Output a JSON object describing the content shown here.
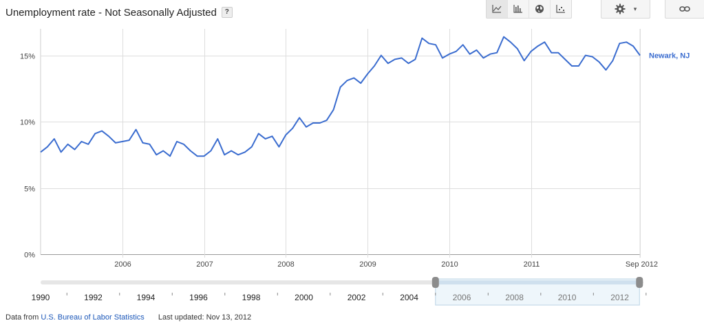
{
  "header": {
    "title": "Unemployment rate - Not Seasonally Adjusted",
    "help_label": "?"
  },
  "toolbar": {
    "buttons": [
      {
        "name": "line-chart-icon",
        "active": true
      },
      {
        "name": "bar-chart-icon",
        "active": false
      },
      {
        "name": "map-globe-icon",
        "active": false
      },
      {
        "name": "scatter-plot-icon",
        "active": false
      }
    ],
    "settings_icon": "gear-icon",
    "settings_caret": "▾",
    "link_icon": "link-icon"
  },
  "chart_data": {
    "type": "line",
    "title": "",
    "xlabel": "",
    "ylabel": "",
    "ylim": [
      0,
      17
    ],
    "y_ticks": [
      "0%",
      "5%",
      "10%",
      "15%"
    ],
    "y_tick_values": [
      0,
      5,
      10,
      15
    ],
    "x_range": [
      "2005-01",
      "2012-09"
    ],
    "x_ticks": [
      "2006",
      "2007",
      "2008",
      "2009",
      "2010",
      "2011",
      "Sep 2012"
    ],
    "grid": true,
    "series": [
      {
        "name": "Newark, NJ",
        "color": "#3a6ccf",
        "values": [
          7.7,
          8.1,
          8.7,
          7.7,
          8.3,
          7.9,
          8.5,
          8.3,
          9.1,
          9.3,
          8.9,
          8.4,
          8.5,
          8.6,
          9.4,
          8.4,
          8.3,
          7.5,
          7.8,
          7.4,
          8.5,
          8.3,
          7.8,
          7.4,
          7.4,
          7.8,
          8.7,
          7.5,
          7.8,
          7.5,
          7.7,
          8.1,
          9.1,
          8.7,
          8.9,
          8.1,
          9.0,
          9.5,
          10.3,
          9.6,
          9.9,
          9.9,
          10.1,
          10.9,
          12.6,
          13.1,
          13.3,
          12.9,
          13.6,
          14.2,
          15.0,
          14.4,
          14.7,
          14.8,
          14.4,
          14.7,
          16.3,
          15.9,
          15.8,
          14.8,
          15.1,
          15.3,
          15.8,
          15.1,
          15.4,
          14.8,
          15.1,
          15.2,
          16.4,
          16.0,
          15.5,
          14.6,
          15.3,
          15.7,
          16.0,
          15.2,
          15.2,
          14.7,
          14.2,
          14.2,
          15.0,
          14.9,
          14.5,
          13.9,
          14.6,
          15.9,
          16.0,
          15.7,
          15.0
        ]
      }
    ],
    "navigator": {
      "labels": [
        "1990",
        "1992",
        "1994",
        "1996",
        "1998",
        "2000",
        "2002",
        "2004",
        "2006",
        "2008",
        "2010",
        "2012"
      ],
      "range_start": 1990,
      "range_end": 2012.9,
      "selected_start": 2005,
      "selected_end": 2012.75
    }
  },
  "footer": {
    "source_prefix": "Data from",
    "source_link": "U.S. Bureau of Labor Statistics",
    "last_updated": "Last updated: Nov 13, 2012"
  }
}
